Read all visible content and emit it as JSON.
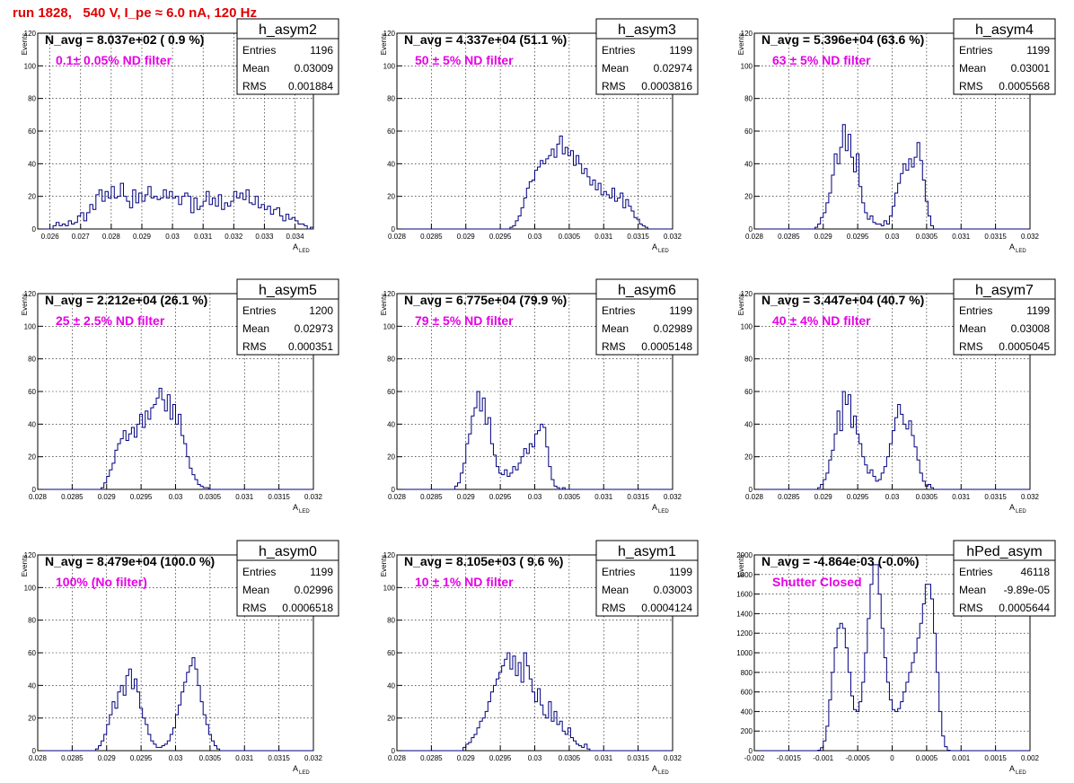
{
  "page_title": "run 1828,   540 V, I_pe ≈ 6.0 nA, 120 Hz",
  "stat_labels": {
    "entries": "Entries",
    "mean": "Mean",
    "rms": "RMS"
  },
  "colors": {
    "histogram": "#000080",
    "page_title": "#e00000",
    "annotation": "#e600e6",
    "grid": "#000000"
  },
  "chart_data": [
    {
      "type": "histogram",
      "name": "h_asym2",
      "navg": "N_avg = 8.037e+02 ( 0.9 %)",
      "filter": "0.1± 0.05% ND filter",
      "entries": "1196",
      "mean": "0.03009",
      "rms": "0.001884",
      "ylabel": "Events",
      "xlabel": "A_LED",
      "grid": true,
      "xlim": [
        0.0256,
        0.0346
      ],
      "ylim": [
        0,
        120
      ],
      "xticks": [
        0.026,
        0.027,
        0.028,
        0.029,
        0.03,
        0.031,
        0.032,
        0.033,
        0.034
      ],
      "xticklabels": [
        "0.026",
        "0.027",
        "0.028",
        "0.029",
        "0.03",
        "0.031",
        "0.032",
        "0.033",
        "0.034"
      ],
      "yticks": [
        0,
        20,
        40,
        60,
        80,
        100,
        120
      ],
      "bin_start": 0.0256,
      "bin_width": 0.0001,
      "values": [
        0,
        0,
        0,
        0,
        0,
        2,
        4,
        2,
        3,
        2,
        5,
        3,
        4,
        8,
        10,
        5,
        10,
        15,
        12,
        21,
        24,
        17,
        23,
        19,
        26,
        19,
        20,
        28,
        20,
        17,
        13,
        24,
        16,
        22,
        17,
        21,
        26,
        19,
        20,
        18,
        19,
        24,
        19,
        23,
        19,
        20,
        15,
        20,
        22,
        20,
        10,
        19,
        12,
        14,
        17,
        23,
        15,
        19,
        14,
        21,
        12,
        16,
        14,
        17,
        23,
        19,
        22,
        18,
        24,
        16,
        15,
        20,
        13,
        15,
        12,
        14,
        9,
        12,
        13,
        8,
        5,
        9,
        6,
        7,
        5,
        3,
        3,
        2,
        0,
        1
      ]
    },
    {
      "type": "histogram",
      "name": "h_asym3",
      "navg": "N_avg = 4.337e+04 (51.1 %)",
      "filter": "50 ± 5% ND filter",
      "entries": "1199",
      "mean": "0.02974",
      "rms": "0.0003816",
      "ylabel": "Events",
      "xlabel": "A_LED",
      "grid": true,
      "xlim": [
        0.028,
        0.032
      ],
      "ylim": [
        0,
        120
      ],
      "xticks": [
        0.028,
        0.0285,
        0.029,
        0.0295,
        0.03,
        0.0305,
        0.031,
        0.0315,
        0.032
      ],
      "xticklabels": [
        "0.028",
        "0.0285",
        "0.029",
        "0.0295",
        "0.03",
        "0.0305",
        "0.031",
        "0.0315",
        "0.032"
      ],
      "yticks": [
        0,
        20,
        40,
        60,
        80,
        100,
        120
      ],
      "bin_start": 0.028,
      "bin_width": 4e-05,
      "values": [
        0,
        0,
        0,
        0,
        0,
        0,
        0,
        0,
        0,
        0,
        0,
        0,
        0,
        0,
        0,
        0,
        0,
        0,
        0,
        0,
        0,
        0,
        0,
        0,
        0,
        0,
        0,
        0,
        0,
        0,
        0,
        0,
        0,
        0,
        0,
        0,
        0,
        0,
        0,
        0,
        0,
        1,
        2,
        5,
        8,
        13,
        19,
        25,
        29,
        30,
        36,
        38,
        42,
        40,
        43,
        45,
        49,
        44,
        52,
        57,
        46,
        50,
        45,
        48,
        39,
        45,
        40,
        34,
        37,
        32,
        27,
        30,
        24,
        28,
        21,
        23,
        21,
        19,
        25,
        17,
        19,
        22,
        13,
        18,
        14,
        11,
        7,
        6,
        3,
        2,
        1,
        0,
        0,
        0,
        0,
        0,
        0,
        0,
        0,
        0
      ]
    },
    {
      "type": "histogram",
      "name": "h_asym4",
      "navg": "N_avg = 5.396e+04 (63.6 %)",
      "filter": "63 ± 5% ND filter",
      "entries": "1199",
      "mean": "0.03001",
      "rms": "0.0005568",
      "ylabel": "Events",
      "xlabel": "A_LED",
      "grid": true,
      "xlim": [
        0.028,
        0.032
      ],
      "ylim": [
        0,
        120
      ],
      "xticks": [
        0.028,
        0.0285,
        0.029,
        0.0295,
        0.03,
        0.0305,
        0.031,
        0.0315,
        0.032
      ],
      "xticklabels": [
        "0.028",
        "0.0285",
        "0.029",
        "0.0295",
        "0.03",
        "0.0305",
        "0.031",
        "0.0315",
        "0.032"
      ],
      "yticks": [
        0,
        20,
        40,
        60,
        80,
        100,
        120
      ],
      "bin_start": 0.028,
      "bin_width": 4e-05,
      "values": [
        0,
        0,
        0,
        0,
        0,
        0,
        0,
        0,
        0,
        0,
        0,
        0,
        0,
        0,
        0,
        0,
        0,
        0,
        0,
        0,
        0,
        0,
        1,
        3,
        7,
        10,
        16,
        22,
        33,
        46,
        40,
        50,
        64,
        48,
        58,
        44,
        35,
        46,
        26,
        16,
        10,
        6,
        8,
        4,
        3,
        3,
        2,
        5,
        3,
        8,
        14,
        22,
        28,
        34,
        40,
        36,
        43,
        38,
        44,
        53,
        42,
        30,
        17,
        8,
        2,
        0,
        0,
        0,
        0,
        0,
        0,
        0,
        0,
        0,
        0,
        0,
        0,
        0,
        0,
        0,
        0,
        0,
        0,
        0,
        0,
        0,
        0,
        0,
        0,
        0,
        0,
        0,
        0,
        0,
        0,
        0,
        0,
        0,
        0,
        0
      ]
    },
    {
      "type": "histogram",
      "name": "h_asym5",
      "navg": "N_avg = 2.212e+04 (26.1 %)",
      "filter": "25 ± 2.5% ND filter",
      "entries": "1200",
      "mean": "0.02973",
      "rms": "0.000351",
      "ylabel": "Events",
      "xlabel": "A_LED",
      "grid": true,
      "xlim": [
        0.028,
        0.032
      ],
      "ylim": [
        0,
        120
      ],
      "xticks": [
        0.028,
        0.0285,
        0.029,
        0.0295,
        0.03,
        0.0305,
        0.031,
        0.0315,
        0.032
      ],
      "xticklabels": [
        "0.028",
        "0.0285",
        "0.029",
        "0.0295",
        "0.03",
        "0.0305",
        "0.031",
        "0.0315",
        "0.032"
      ],
      "yticks": [
        0,
        20,
        40,
        60,
        80,
        100,
        120
      ],
      "bin_start": 0.028,
      "bin_width": 4e-05,
      "values": [
        0,
        0,
        0,
        0,
        0,
        0,
        0,
        0,
        0,
        0,
        0,
        0,
        0,
        0,
        0,
        0,
        0,
        0,
        0,
        0,
        0,
        0,
        0,
        1,
        4,
        8,
        12,
        16,
        24,
        28,
        31,
        36,
        30,
        34,
        38,
        32,
        40,
        46,
        38,
        48,
        43,
        50,
        52,
        56,
        62,
        55,
        48,
        58,
        43,
        52,
        40,
        46,
        33,
        28,
        20,
        13,
        9,
        6,
        3,
        2,
        1,
        1,
        0,
        0,
        0,
        0,
        0,
        0,
        0,
        0,
        0,
        0,
        0,
        0,
        0,
        0,
        0,
        0,
        0,
        0,
        0,
        0,
        0,
        0,
        0,
        0,
        0,
        0,
        0,
        0,
        0,
        0,
        0,
        0,
        0,
        0,
        0,
        0,
        0,
        0
      ]
    },
    {
      "type": "histogram",
      "name": "h_asym6",
      "navg": "N_avg = 6.775e+04 (79.9 %)",
      "filter": "79 ± 5% ND filter",
      "entries": "1199",
      "mean": "0.02989",
      "rms": "0.0005148",
      "ylabel": "Events",
      "xlabel": "A_LED",
      "grid": true,
      "xlim": [
        0.028,
        0.032
      ],
      "ylim": [
        0,
        120
      ],
      "xticks": [
        0.028,
        0.0285,
        0.029,
        0.0295,
        0.03,
        0.0305,
        0.031,
        0.0315,
        0.032
      ],
      "xticklabels": [
        "0.028",
        "0.0285",
        "0.029",
        "0.0295",
        "0.03",
        "0.0305",
        "0.031",
        "0.0315",
        "0.032"
      ],
      "yticks": [
        0,
        20,
        40,
        60,
        80,
        100,
        120
      ],
      "bin_start": 0.028,
      "bin_width": 4e-05,
      "values": [
        0,
        0,
        0,
        0,
        0,
        0,
        0,
        0,
        0,
        0,
        0,
        0,
        0,
        0,
        0,
        0,
        0,
        0,
        0,
        0,
        0,
        2,
        4,
        10,
        16,
        28,
        34,
        45,
        50,
        60,
        48,
        56,
        40,
        44,
        28,
        21,
        14,
        10,
        9,
        12,
        8,
        10,
        14,
        12,
        16,
        20,
        25,
        22,
        28,
        26,
        34,
        36,
        40,
        38,
        26,
        14,
        6,
        2,
        1,
        0,
        1,
        0,
        0,
        0,
        0,
        0,
        0,
        0,
        0,
        0,
        0,
        0,
        0,
        0,
        0,
        0,
        0,
        0,
        0,
        0,
        0,
        0,
        0,
        0,
        0,
        0,
        0,
        0,
        0,
        0,
        0,
        0,
        0,
        0,
        0,
        0,
        0,
        0,
        0,
        0
      ]
    },
    {
      "type": "histogram",
      "name": "h_asym7",
      "navg": "N_avg = 3.447e+04 (40.7 %)",
      "filter": "40 ± 4% ND filter",
      "entries": "1199",
      "mean": "0.03008",
      "rms": "0.0005045",
      "ylabel": "Events",
      "xlabel": "A_LED",
      "grid": true,
      "xlim": [
        0.028,
        0.032
      ],
      "ylim": [
        0,
        120
      ],
      "xticks": [
        0.028,
        0.0285,
        0.029,
        0.0295,
        0.03,
        0.0305,
        0.031,
        0.0315,
        0.032
      ],
      "xticklabels": [
        "0.028",
        "0.0285",
        "0.029",
        "0.0295",
        "0.03",
        "0.0305",
        "0.031",
        "0.0315",
        "0.032"
      ],
      "yticks": [
        0,
        20,
        40,
        60,
        80,
        100,
        120
      ],
      "bin_start": 0.028,
      "bin_width": 4e-05,
      "values": [
        0,
        0,
        0,
        0,
        0,
        0,
        0,
        0,
        0,
        0,
        0,
        0,
        0,
        0,
        0,
        0,
        0,
        0,
        0,
        0,
        0,
        0,
        0,
        1,
        3,
        6,
        10,
        18,
        24,
        34,
        48,
        36,
        60,
        52,
        58,
        38,
        45,
        34,
        28,
        20,
        15,
        10,
        12,
        8,
        5,
        6,
        10,
        14,
        20,
        28,
        36,
        44,
        52,
        46,
        40,
        37,
        42,
        33,
        26,
        18,
        10,
        5,
        2,
        3,
        1,
        0,
        0,
        0,
        0,
        0,
        0,
        0,
        0,
        0,
        0,
        0,
        0,
        0,
        0,
        0,
        0,
        0,
        0,
        0,
        0,
        0,
        0,
        0,
        0,
        0,
        0,
        0,
        0,
        0,
        0,
        0,
        0,
        0,
        0,
        0
      ]
    },
    {
      "type": "histogram",
      "name": "h_asym0",
      "navg": "N_avg = 8.479e+04 (100.0 %)",
      "filter": "100% (No filter)",
      "entries": "1199",
      "mean": "0.02996",
      "rms": "0.0006518",
      "ylabel": "Events",
      "xlabel": "A_LED",
      "grid": true,
      "xlim": [
        0.028,
        0.032
      ],
      "ylim": [
        0,
        120
      ],
      "xticks": [
        0.028,
        0.0285,
        0.029,
        0.0295,
        0.03,
        0.0305,
        0.031,
        0.0315,
        0.032
      ],
      "xticklabels": [
        "0.028",
        "0.0285",
        "0.029",
        "0.0295",
        "0.03",
        "0.0305",
        "0.031",
        "0.0315",
        "0.032"
      ],
      "yticks": [
        0,
        20,
        40,
        60,
        80,
        100,
        120
      ],
      "bin_start": 0.028,
      "bin_width": 4e-05,
      "values": [
        0,
        0,
        0,
        0,
        0,
        0,
        0,
        0,
        0,
        0,
        0,
        0,
        0,
        0,
        0,
        0,
        0,
        0,
        0,
        0,
        0,
        1,
        3,
        6,
        10,
        16,
        22,
        30,
        26,
        36,
        40,
        34,
        46,
        50,
        38,
        44,
        36,
        26,
        20,
        16,
        10,
        6,
        4,
        2,
        2,
        3,
        4,
        6,
        10,
        14,
        22,
        28,
        36,
        42,
        48,
        52,
        57,
        50,
        40,
        30,
        22,
        16,
        10,
        6,
        3,
        1,
        0,
        0,
        0,
        0,
        0,
        0,
        0,
        0,
        0,
        0,
        0,
        0,
        0,
        0,
        0,
        0,
        0,
        0,
        0,
        0,
        0,
        0,
        0,
        0,
        0,
        0,
        0,
        0,
        0,
        0,
        0,
        0,
        0,
        0
      ]
    },
    {
      "type": "histogram",
      "name": "h_asym1",
      "navg": "N_avg = 8.105e+03 ( 9.6 %)",
      "filter": "10 ± 1% ND filter",
      "entries": "1199",
      "mean": "0.03003",
      "rms": "0.0004124",
      "ylabel": "Events",
      "xlabel": "A_LED",
      "grid": true,
      "xlim": [
        0.028,
        0.032
      ],
      "ylim": [
        0,
        120
      ],
      "xticks": [
        0.028,
        0.0285,
        0.029,
        0.0295,
        0.03,
        0.0305,
        0.031,
        0.0315,
        0.032
      ],
      "xticklabels": [
        "0.028",
        "0.0285",
        "0.029",
        "0.0295",
        "0.03",
        "0.0305",
        "0.031",
        "0.0315",
        "0.032"
      ],
      "yticks": [
        0,
        20,
        40,
        60,
        80,
        100,
        120
      ],
      "bin_start": 0.028,
      "bin_width": 4e-05,
      "values": [
        0,
        0,
        0,
        0,
        0,
        0,
        0,
        0,
        0,
        0,
        0,
        0,
        0,
        0,
        0,
        0,
        0,
        0,
        0,
        0,
        0,
        0,
        0,
        0,
        2,
        4,
        5,
        8,
        10,
        14,
        18,
        20,
        24,
        30,
        36,
        40,
        44,
        48,
        52,
        56,
        60,
        50,
        58,
        46,
        54,
        42,
        60,
        52,
        44,
        36,
        30,
        38,
        28,
        22,
        20,
        30,
        18,
        24,
        16,
        18,
        12,
        10,
        14,
        8,
        6,
        4,
        3,
        2,
        4,
        1,
        0,
        0,
        0,
        0,
        0,
        0,
        0,
        0,
        0,
        0,
        0,
        0,
        0,
        0,
        0,
        0,
        0,
        0,
        0,
        0,
        0,
        0,
        0,
        0,
        0,
        0,
        0,
        0,
        0,
        0
      ]
    },
    {
      "type": "histogram",
      "name": "hPed_asym",
      "navg": "N_avg = -4.864e-03 (-0.0%)",
      "filter": "Shutter Closed",
      "entries": "46118",
      "mean": "-9.89e-05",
      "rms": "0.0005644",
      "ylabel": "Events",
      "xlabel": "A_LED",
      "grid": true,
      "xlim": [
        -0.002,
        0.002
      ],
      "ylim": [
        0,
        2000
      ],
      "xticks": [
        -0.002,
        -0.0015,
        -0.001,
        -0.0005,
        0,
        0.0005,
        0.001,
        0.0015,
        0.002
      ],
      "xticklabels": [
        "-0.002",
        "-0.0015",
        "-0.001",
        "-0.0005",
        "0",
        "0.0005",
        "0.001",
        "0.0015",
        "0.002"
      ],
      "yticks": [
        0,
        200,
        400,
        600,
        800,
        1000,
        1200,
        1400,
        1600,
        1800,
        2000
      ],
      "bin_start": -0.002,
      "bin_width": 4e-05,
      "values": [
        0,
        0,
        0,
        0,
        0,
        0,
        0,
        0,
        0,
        0,
        0,
        0,
        0,
        0,
        0,
        0,
        0,
        0,
        0,
        0,
        0,
        0,
        0,
        5,
        30,
        100,
        250,
        520,
        800,
        1050,
        1250,
        1300,
        1250,
        1050,
        800,
        560,
        420,
        400,
        500,
        700,
        1000,
        1350,
        1700,
        1900,
        1900,
        1600,
        1250,
        950,
        700,
        520,
        420,
        400,
        430,
        500,
        600,
        700,
        800,
        900,
        1000,
        1150,
        1300,
        1500,
        1700,
        1700,
        1550,
        1200,
        800,
        400,
        150,
        40,
        5,
        0,
        0,
        0,
        0,
        0,
        0,
        0,
        0,
        0,
        0,
        0,
        0,
        0,
        0,
        0,
        0,
        0,
        0,
        0,
        0,
        0,
        0,
        0,
        0,
        0,
        0,
        0,
        0,
        0
      ]
    }
  ]
}
